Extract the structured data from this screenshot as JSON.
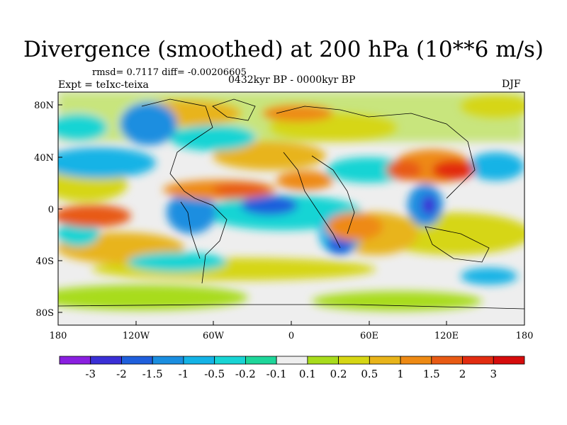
{
  "title": "Divergence (smoothed) at 200 hPa (10**6 m/s)",
  "stats": "rmsd= 0.7117 diff= -0.00206605",
  "experiment": "Expt = teIxc-teixa",
  "period": "0432kyr BP - 0000kyr BP",
  "season": "DJF",
  "axes": {
    "x_ticks": [
      "180",
      "120W",
      "60W",
      "0",
      "60E",
      "120E",
      "180"
    ],
    "y_ticks": [
      "80N",
      "40N",
      "0",
      "40S",
      "80S"
    ]
  },
  "colorbar": {
    "labels": [
      "-3",
      "-2",
      "-1.5",
      "-1",
      "-0.5",
      "-0.2",
      "-0.1",
      "0.1",
      "0.2",
      "0.5",
      "1",
      "1.5",
      "2",
      "3"
    ],
    "colors": [
      "#8a1fe0",
      "#3a2fd6",
      "#1f5fdc",
      "#1a8ee0",
      "#14b3e6",
      "#18d4d4",
      "#1ed69a",
      "#eeeeee",
      "#a8dc1c",
      "#d6d614",
      "#e8b41a",
      "#ee8a14",
      "#e85a14",
      "#e22c10",
      "#d60c0c"
    ]
  },
  "icons": {
    "map": "world-map-continents"
  }
}
